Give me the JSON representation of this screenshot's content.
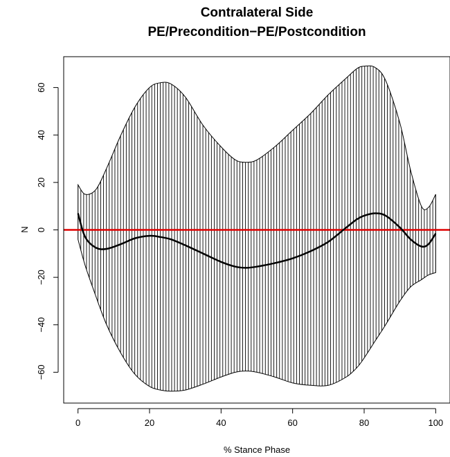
{
  "chart_data": {
    "type": "line",
    "title": "Contralateral Side",
    "subtitle": "PE/Precondition−PE/Postcondition",
    "xlabel": "% Stance Phase",
    "ylabel": "N",
    "xlim": [
      -4,
      104
    ],
    "ylim": [
      -73,
      73
    ],
    "xticks": [
      "0",
      "20",
      "40",
      "60",
      "80",
      "100"
    ],
    "yticks": [
      "-60",
      "-40",
      "-20",
      "0",
      "20",
      "40",
      "60"
    ],
    "grid": false,
    "reference_line": {
      "y": 0,
      "color": "#e00000"
    },
    "x": [
      0,
      2,
      5,
      8,
      12,
      16,
      20,
      23,
      26,
      30,
      35,
      40,
      44,
      47,
      50,
      55,
      60,
      65,
      70,
      75,
      78,
      80,
      83,
      86,
      90,
      93,
      96,
      98,
      100
    ],
    "mean": [
      7,
      -3,
      -7.5,
      -8,
      -6,
      -3.5,
      -2.5,
      -3,
      -4,
      -6.5,
      -10,
      -13.5,
      -15.5,
      -16,
      -15.5,
      -14,
      -12,
      -9,
      -5,
      1,
      4.5,
      6,
      7,
      6,
      1,
      -4,
      -7,
      -6,
      -1.5
    ],
    "upper": [
      19,
      15,
      17,
      26,
      40,
      52,
      60,
      62,
      61.5,
      56,
      44,
      35,
      29.5,
      28.5,
      29.5,
      35,
      42,
      49,
      57,
      64,
      68,
      69,
      68.5,
      63,
      45,
      25,
      10,
      9.5,
      15
    ],
    "lower": [
      -4,
      -15,
      -28,
      -40,
      -52,
      -61,
      -66,
      -67.5,
      -68,
      -67.5,
      -65,
      -62,
      -60,
      -59.5,
      -60,
      -62,
      -64.5,
      -65.5,
      -65.5,
      -62,
      -58,
      -54,
      -47,
      -40,
      -30,
      -24,
      -21,
      -19,
      -18
    ],
    "colors": {
      "band": "#000000",
      "mean": "#000000",
      "reference": "#e00000"
    }
  }
}
